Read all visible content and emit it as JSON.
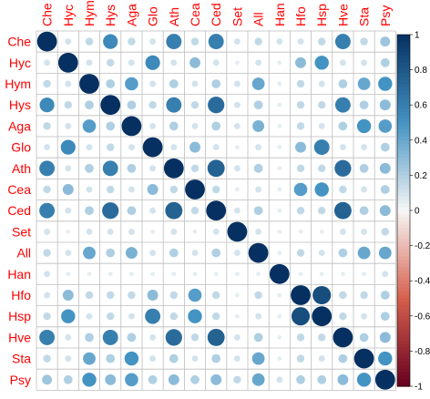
{
  "chart_data": {
    "type": "heatmap",
    "style": "correlation matrix, circle glyphs (corrplot)",
    "labels": [
      "Che",
      "Hyc",
      "Hym",
      "Hys",
      "Aga",
      "Glo",
      "Ath",
      "Cea",
      "Ced",
      "Set",
      "All",
      "Han",
      "Hfo",
      "Hsp",
      "Hve",
      "Sta",
      "Psy"
    ],
    "matrix": [
      [
        1.0,
        0.1,
        0.15,
        0.55,
        0.15,
        0.1,
        0.6,
        0.15,
        0.6,
        0.1,
        0.15,
        0.1,
        0.1,
        0.15,
        0.6,
        0.15,
        0.25
      ],
      [
        0.1,
        1.0,
        0.1,
        0.15,
        0.1,
        0.55,
        0.1,
        0.3,
        0.1,
        0.05,
        0.1,
        0.05,
        0.3,
        0.5,
        0.1,
        0.1,
        0.2
      ],
      [
        0.15,
        0.1,
        1.0,
        0.2,
        0.45,
        0.1,
        0.2,
        0.1,
        0.2,
        0.1,
        0.4,
        0.05,
        0.15,
        0.1,
        0.2,
        0.4,
        0.5
      ],
      [
        0.55,
        0.15,
        0.2,
        1.0,
        0.2,
        0.15,
        0.6,
        0.15,
        0.7,
        0.1,
        0.2,
        0.05,
        0.15,
        0.15,
        0.6,
        0.2,
        0.3
      ],
      [
        0.15,
        0.1,
        0.45,
        0.2,
        1.0,
        0.1,
        0.2,
        0.1,
        0.2,
        0.1,
        0.35,
        0.05,
        0.15,
        0.1,
        0.2,
        0.5,
        0.45
      ],
      [
        0.1,
        0.55,
        0.1,
        0.15,
        0.1,
        1.0,
        0.1,
        0.3,
        0.1,
        0.05,
        0.1,
        0.05,
        0.3,
        0.6,
        0.1,
        0.1,
        0.2
      ],
      [
        0.6,
        0.1,
        0.2,
        0.6,
        0.2,
        0.1,
        1.0,
        0.15,
        0.75,
        0.1,
        0.2,
        0.05,
        0.15,
        0.15,
        0.7,
        0.2,
        0.3
      ],
      [
        0.15,
        0.3,
        0.1,
        0.15,
        0.1,
        0.3,
        0.15,
        1.0,
        0.15,
        0.05,
        0.1,
        0.05,
        0.45,
        0.5,
        0.15,
        0.1,
        0.2
      ],
      [
        0.6,
        0.1,
        0.2,
        0.7,
        0.2,
        0.1,
        0.75,
        0.15,
        1.0,
        0.1,
        0.2,
        0.05,
        0.15,
        0.15,
        0.75,
        0.2,
        0.3
      ],
      [
        0.1,
        0.05,
        0.1,
        0.1,
        0.1,
        0.05,
        0.1,
        0.05,
        0.1,
        1.0,
        0.1,
        0.05,
        0.05,
        0.05,
        0.1,
        0.1,
        0.15
      ],
      [
        0.15,
        0.1,
        0.4,
        0.2,
        0.35,
        0.1,
        0.2,
        0.1,
        0.2,
        0.1,
        1.0,
        0.05,
        0.15,
        0.1,
        0.2,
        0.4,
        0.4
      ],
      [
        0.1,
        0.05,
        0.05,
        0.05,
        0.05,
        0.05,
        0.05,
        0.05,
        0.05,
        0.05,
        0.05,
        1.0,
        0.05,
        0.05,
        0.05,
        0.05,
        0.1
      ],
      [
        0.1,
        0.3,
        0.15,
        0.15,
        0.15,
        0.3,
        0.15,
        0.45,
        0.15,
        0.05,
        0.15,
        0.05,
        1.0,
        0.85,
        0.15,
        0.15,
        0.2
      ],
      [
        0.15,
        0.5,
        0.1,
        0.15,
        0.1,
        0.6,
        0.15,
        0.5,
        0.15,
        0.05,
        0.1,
        0.05,
        0.85,
        1.0,
        0.15,
        0.1,
        0.2
      ],
      [
        0.6,
        0.1,
        0.2,
        0.6,
        0.2,
        0.1,
        0.7,
        0.15,
        0.75,
        0.1,
        0.2,
        0.05,
        0.15,
        0.15,
        1.0,
        0.2,
        0.3
      ],
      [
        0.15,
        0.1,
        0.4,
        0.2,
        0.5,
        0.1,
        0.2,
        0.1,
        0.2,
        0.1,
        0.4,
        0.05,
        0.15,
        0.1,
        0.2,
        1.0,
        0.5
      ],
      [
        0.25,
        0.2,
        0.5,
        0.3,
        0.45,
        0.2,
        0.3,
        0.2,
        0.3,
        0.15,
        0.4,
        0.1,
        0.2,
        0.2,
        0.3,
        0.5,
        1.0
      ]
    ],
    "colorbar": {
      "ticks": [
        "1",
        "0.8",
        "0.6",
        "0.4",
        "0.2",
        "0",
        "-0.2",
        "-0.4",
        "-0.6",
        "-0.8",
        "-1"
      ],
      "range": [
        -1,
        1
      ]
    },
    "colors": {
      "negative_strong": "#67001F",
      "negative_mid": "#D6604D",
      "neutral": "#F7F7F7",
      "positive_mid": "#4393C3",
      "positive_strong": "#053061",
      "label_color": "#FF0000",
      "grid_color": "#BEBEBE"
    },
    "grid": true,
    "legend_placement": "right"
  }
}
